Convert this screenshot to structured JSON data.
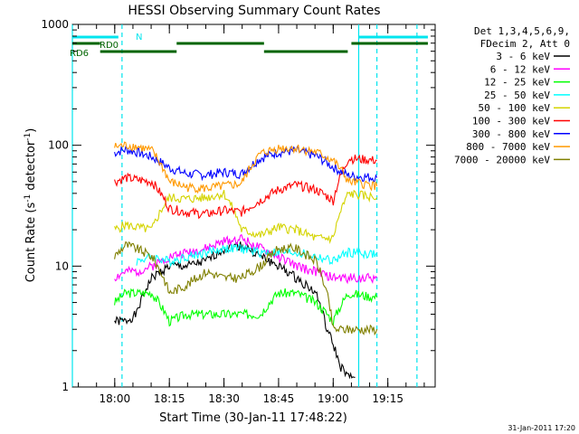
{
  "chart_data": {
    "type": "line",
    "title": "HESSI Observing Summary Count Rates",
    "xlabel": "Start Time (30-Jan-11 17:48:22)",
    "ylabel": "Count Rate (s⁻¹ detector⁻¹)",
    "yscale": "log",
    "ylim": [
      1,
      1000
    ],
    "xlim_minutes": [
      "17:48:22",
      "19:28"
    ],
    "x_ticks": [
      "18:00",
      "18:15",
      "18:30",
      "18:45",
      "19:00",
      "19:15"
    ],
    "y_ticks": [
      "1",
      "10",
      "100",
      "1000"
    ],
    "grid": false,
    "legend_position": "right",
    "legend_header": [
      "Det 1,3,4,5,6,9,",
      "FDecim 2, Att 0"
    ],
    "footer_date": "31-Jan-2011 17:20",
    "annotations": {
      "n_label": "N",
      "rd0_label": "RD0",
      "rd6_label": "RD6"
    },
    "vertical_markers": [
      {
        "time": "17:48:22",
        "style": "solid",
        "color": "#00e5ee"
      },
      {
        "time": "18:02",
        "style": "dashed",
        "color": "#00e5ee"
      },
      {
        "time": "19:07",
        "style": "solid",
        "color": "#00e5ee"
      },
      {
        "time": "19:12",
        "style": "dashed",
        "color": "#00e5ee"
      },
      {
        "time": "19:23",
        "style": "dashed",
        "color": "#00e5ee"
      }
    ],
    "orbit_bars": {
      "n_bar": [
        [
          "17:48:22",
          "18:01"
        ],
        [
          "19:07",
          "19:26"
        ]
      ],
      "rd0_bar": [
        [
          "17:48:22",
          "17:56"
        ],
        [
          "18:17",
          "18:41"
        ],
        [
          "19:05",
          "19:26"
        ]
      ],
      "rd6_bar": [
        [
          "17:56",
          "18:17"
        ],
        [
          "18:41",
          "19:04"
        ]
      ]
    },
    "series": [
      {
        "name": "3 - 6 keV",
        "color": "#000000",
        "values": [
          [
            17.999,
            3.5
          ],
          [
            18.05,
            3.5
          ],
          [
            18.1,
            4
          ],
          [
            18.17,
            8
          ],
          [
            18.25,
            10
          ],
          [
            18.33,
            10
          ],
          [
            18.42,
            11
          ],
          [
            18.5,
            14
          ],
          [
            18.58,
            15
          ],
          [
            18.667,
            12
          ],
          [
            18.75,
            10
          ],
          [
            18.83,
            8
          ],
          [
            18.92,
            6
          ],
          [
            18.97,
            3
          ],
          [
            19.03,
            1.5
          ],
          [
            19.07,
            1.2
          ],
          [
            19.1,
            1.2
          ]
        ]
      },
      {
        "name": "6 - 12 keV",
        "color": "#ff00ff",
        "values": [
          [
            17.999,
            8
          ],
          [
            18.05,
            9
          ],
          [
            18.1,
            9
          ],
          [
            18.17,
            10
          ],
          [
            18.25,
            12
          ],
          [
            18.33,
            13
          ],
          [
            18.42,
            14
          ],
          [
            18.5,
            16
          ],
          [
            18.58,
            17
          ],
          [
            18.667,
            14
          ],
          [
            18.75,
            12
          ],
          [
            18.83,
            10
          ],
          [
            18.92,
            9
          ],
          [
            19.0,
            8
          ],
          [
            19.1,
            8
          ],
          [
            19.2,
            8
          ]
        ]
      },
      {
        "name": "12 - 25 keV",
        "color": "#00ff00",
        "values": [
          [
            17.999,
            5
          ],
          [
            18.05,
            6
          ],
          [
            18.1,
            6
          ],
          [
            18.17,
            6
          ],
          [
            18.25,
            3.5
          ],
          [
            18.33,
            4
          ],
          [
            18.42,
            4
          ],
          [
            18.5,
            4
          ],
          [
            18.58,
            4
          ],
          [
            18.667,
            4
          ],
          [
            18.75,
            6
          ],
          [
            18.83,
            6
          ],
          [
            18.92,
            5
          ],
          [
            19.0,
            3.5
          ],
          [
            19.07,
            6
          ],
          [
            19.2,
            5.5
          ]
        ]
      },
      {
        "name": "25 - 50 keV",
        "color": "#00ffff",
        "values": [
          [
            18.1,
            11
          ],
          [
            18.17,
            12
          ],
          [
            18.25,
            11
          ],
          [
            18.33,
            12
          ],
          [
            18.42,
            13
          ],
          [
            18.5,
            14
          ],
          [
            18.58,
            14
          ],
          [
            18.667,
            13
          ],
          [
            18.75,
            13
          ],
          [
            18.83,
            13
          ],
          [
            18.92,
            12
          ],
          [
            19.0,
            11
          ],
          [
            19.07,
            13
          ],
          [
            19.2,
            12.5
          ]
        ]
      },
      {
        "name": "50 - 100 keV",
        "color": "#d4d400",
        "values": [
          [
            17.999,
            20
          ],
          [
            18.05,
            22
          ],
          [
            18.1,
            21
          ],
          [
            18.17,
            20
          ],
          [
            18.25,
            37
          ],
          [
            18.33,
            36
          ],
          [
            18.42,
            37
          ],
          [
            18.5,
            40
          ],
          [
            18.58,
            20
          ],
          [
            18.667,
            18
          ],
          [
            18.75,
            21
          ],
          [
            18.83,
            20
          ],
          [
            18.92,
            17
          ],
          [
            19.0,
            17
          ],
          [
            19.07,
            40
          ],
          [
            19.2,
            37
          ]
        ]
      },
      {
        "name": "100 - 300 keV",
        "color": "#ff0000",
        "values": [
          [
            17.999,
            50
          ],
          [
            18.05,
            54
          ],
          [
            18.1,
            52
          ],
          [
            18.17,
            50
          ],
          [
            18.25,
            30
          ],
          [
            18.33,
            28
          ],
          [
            18.42,
            27
          ],
          [
            18.5,
            29
          ],
          [
            18.58,
            28
          ],
          [
            18.667,
            35
          ],
          [
            18.75,
            43
          ],
          [
            18.83,
            47
          ],
          [
            18.92,
            43
          ],
          [
            19.0,
            35
          ],
          [
            19.07,
            78
          ],
          [
            19.2,
            75
          ]
        ]
      },
      {
        "name": "300 - 800 keV",
        "color": "#0000ff",
        "values": [
          [
            17.999,
            87
          ],
          [
            18.05,
            92
          ],
          [
            18.1,
            88
          ],
          [
            18.17,
            80
          ],
          [
            18.25,
            65
          ],
          [
            18.33,
            58
          ],
          [
            18.42,
            57
          ],
          [
            18.5,
            60
          ],
          [
            18.58,
            58
          ],
          [
            18.667,
            78
          ],
          [
            18.75,
            88
          ],
          [
            18.83,
            90
          ],
          [
            18.92,
            82
          ],
          [
            19.0,
            66
          ],
          [
            19.07,
            56
          ],
          [
            19.2,
            54
          ]
        ]
      },
      {
        "name": "800 - 7000 keV",
        "color": "#ff9900",
        "values": [
          [
            17.999,
            97
          ],
          [
            18.05,
            100
          ],
          [
            18.1,
            98
          ],
          [
            18.17,
            90
          ],
          [
            18.25,
            50
          ],
          [
            18.33,
            45
          ],
          [
            18.42,
            44
          ],
          [
            18.5,
            46
          ],
          [
            18.58,
            48
          ],
          [
            18.667,
            85
          ],
          [
            18.75,
            95
          ],
          [
            18.83,
            95
          ],
          [
            18.92,
            88
          ],
          [
            19.0,
            75
          ],
          [
            19.07,
            50
          ],
          [
            19.2,
            46
          ]
        ]
      },
      {
        "name": "7000 - 20000 keV",
        "color": "#808000",
        "values": [
          [
            17.999,
            12
          ],
          [
            18.05,
            15
          ],
          [
            18.1,
            14
          ],
          [
            18.17,
            12
          ],
          [
            18.25,
            6
          ],
          [
            18.33,
            7
          ],
          [
            18.42,
            9
          ],
          [
            18.5,
            8
          ],
          [
            18.58,
            8
          ],
          [
            18.667,
            10
          ],
          [
            18.75,
            14
          ],
          [
            18.83,
            14
          ],
          [
            18.92,
            11
          ],
          [
            19.0,
            3
          ],
          [
            19.07,
            3
          ],
          [
            19.2,
            3
          ]
        ]
      }
    ]
  }
}
